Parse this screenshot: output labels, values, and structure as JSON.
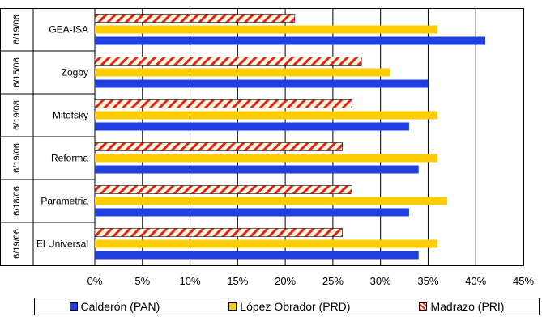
{
  "chart_data": {
    "type": "bar",
    "orientation": "horizontal",
    "title": "",
    "categories": [
      "GEA-ISA",
      "Zogby",
      "Mitofsky",
      "Reforma",
      "Parametria",
      "El Universal"
    ],
    "dates": [
      "6/19/06",
      "6/15/06",
      "6/19/08",
      "6/19/06",
      "6/18/06",
      "6/19/06"
    ],
    "series": [
      {
        "name": "Calderón (PAN)",
        "color": "#1f3fe0",
        "pattern": "solid",
        "values": [
          41,
          35,
          33,
          34,
          33,
          34
        ]
      },
      {
        "name": "López Obrador (PRD)",
        "color": "#ffcc00",
        "pattern": "solid",
        "values": [
          36,
          31,
          36,
          36,
          37,
          36
        ]
      },
      {
        "name": "Madrazo (PRI)",
        "color": "#e8201c",
        "pattern": "diagonal-stripes",
        "values": [
          21,
          28,
          27,
          26,
          27,
          26
        ]
      }
    ],
    "xlim": [
      0,
      45
    ],
    "xticks": [
      "0%",
      "5%",
      "10%",
      "15%",
      "20%",
      "25%",
      "30%",
      "35%",
      "40%",
      "45%"
    ],
    "grid": "vertical",
    "legend_position": "bottom"
  }
}
